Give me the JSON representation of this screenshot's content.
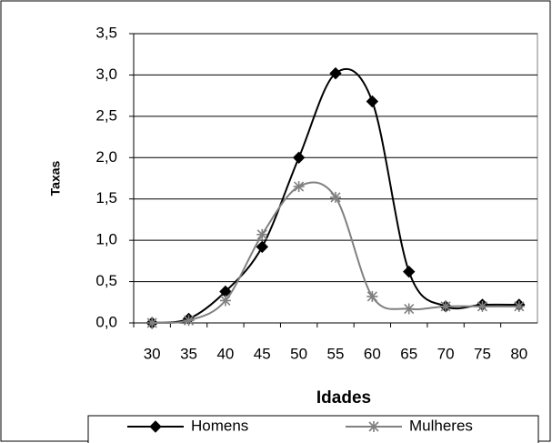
{
  "chart_data": {
    "type": "line",
    "x_label": "Idades",
    "y_label": "Taxas",
    "categories": [
      "30",
      "35",
      "40",
      "45",
      "50",
      "55",
      "60",
      "65",
      "70",
      "75",
      "80"
    ],
    "series": [
      {
        "name": "Homens",
        "color": "#000000",
        "marker": "diamond",
        "values": [
          0,
          0.05,
          0.38,
          0.92,
          2.0,
          3.02,
          2.68,
          0.62,
          0.2,
          0.22,
          0.22
        ]
      },
      {
        "name": "Mulheres",
        "color": "#808080",
        "marker": "asterisk",
        "values": [
          0,
          0.03,
          0.27,
          1.07,
          1.65,
          1.52,
          0.32,
          0.17,
          0.2,
          0.2,
          0.2
        ]
      }
    ],
    "ylim": [
      0,
      3.5
    ],
    "yticks": [
      {
        "value": 0,
        "label": "0,0"
      },
      {
        "value": 0.5,
        "label": "0,5"
      },
      {
        "value": 1,
        "label": "1,0"
      },
      {
        "value": 1.5,
        "label": "1,5"
      },
      {
        "value": 2,
        "label": "2,0"
      },
      {
        "value": 2.5,
        "label": "2,5"
      },
      {
        "value": 3,
        "label": "3,0"
      },
      {
        "value": 3.5,
        "label": "3,5"
      }
    ],
    "grid": true,
    "smooth": true,
    "legend": "bottom"
  }
}
